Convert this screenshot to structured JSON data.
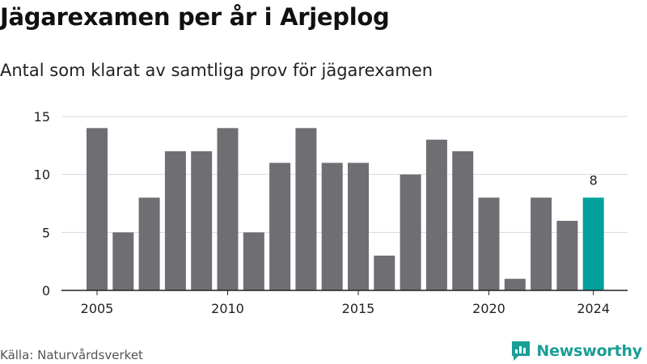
{
  "title": "Jägarexamen per år i Arjeplog",
  "subtitle": "Antal som klarat av samtliga prov för jägarexamen",
  "source": "Källa: Naturvårdsverket",
  "brand": {
    "name": "Newsworthy",
    "color": "#1a9e95"
  },
  "colors": {
    "bar": "#6f6e73",
    "highlight": "#00a19a",
    "grid": "#d9d9d9",
    "axis": "#222222"
  },
  "chart_data": {
    "type": "bar",
    "title": "Jägarexamen per år i Arjeplog",
    "subtitle": "Antal som klarat av samtliga prov för jägarexamen",
    "xlabel": "",
    "ylabel": "",
    "x": [
      2005,
      2006,
      2007,
      2008,
      2009,
      2010,
      2011,
      2012,
      2013,
      2014,
      2015,
      2016,
      2017,
      2018,
      2019,
      2020,
      2021,
      2022,
      2023,
      2024
    ],
    "values": [
      14,
      5,
      8,
      12,
      12,
      14,
      5,
      11,
      14,
      11,
      11,
      3,
      10,
      13,
      12,
      8,
      1,
      8,
      6,
      8
    ],
    "highlight_x": 2024,
    "highlight_label": "8",
    "ylim": [
      0,
      15
    ],
    "yticks": [
      0,
      5,
      10,
      15
    ],
    "xticks": [
      2005,
      2010,
      2015,
      2020,
      2024
    ],
    "grid": true
  }
}
